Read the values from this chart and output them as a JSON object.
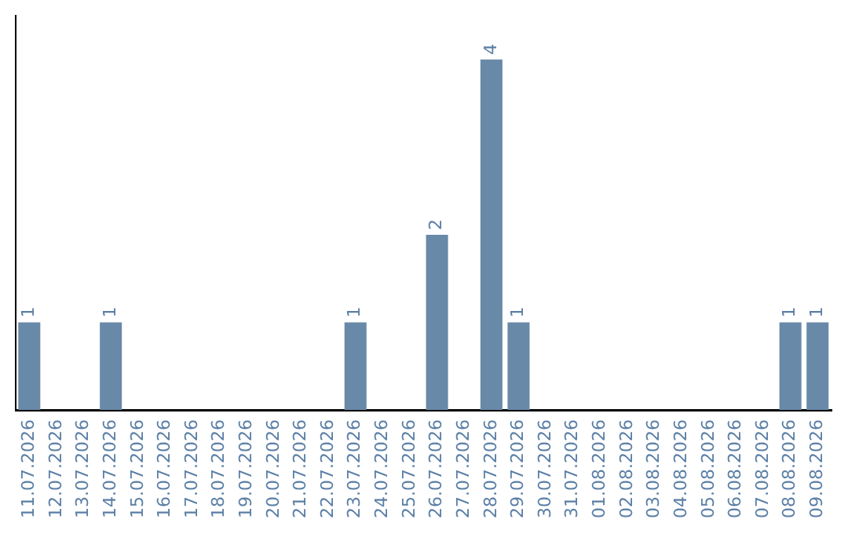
{
  "chart_data": {
    "type": "bar",
    "categories": [
      "11.07.2026",
      "12.07.2026",
      "13.07.2026",
      "14.07.2026",
      "15.07.2026",
      "16.07.2026",
      "17.07.2026",
      "18.07.2026",
      "19.07.2026",
      "20.07.2026",
      "21.07.2026",
      "22.07.2026",
      "23.07.2026",
      "24.07.2026",
      "25.07.2026",
      "26.07.2026",
      "27.07.2026",
      "28.07.2026",
      "29.07.2026",
      "30.07.2026",
      "31.07.2026",
      "01.08.2026",
      "02.08.2026",
      "03.08.2026",
      "04.08.2026",
      "05.08.2026",
      "06.08.2026",
      "07.08.2026",
      "08.08.2026",
      "09.08.2026"
    ],
    "values": [
      1,
      0,
      0,
      1,
      0,
      0,
      0,
      0,
      0,
      0,
      0,
      0,
      1,
      0,
      0,
      2,
      0,
      4,
      1,
      0,
      0,
      0,
      0,
      0,
      0,
      0,
      0,
      0,
      1,
      1
    ],
    "value_labels": [
      "1",
      null,
      null,
      "1",
      null,
      null,
      null,
      null,
      null,
      null,
      null,
      null,
      "1",
      null,
      null,
      "2",
      null,
      "4",
      "1",
      null,
      null,
      null,
      null,
      null,
      null,
      null,
      null,
      null,
      "1",
      "1"
    ],
    "color": "#6889a8",
    "tick_labels": "x",
    "grid": false,
    "legend": false
  }
}
